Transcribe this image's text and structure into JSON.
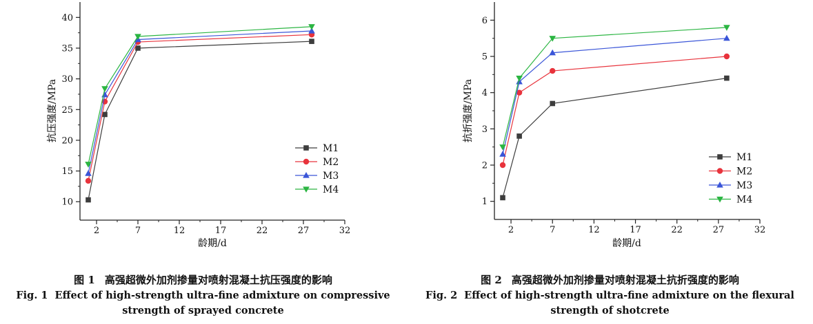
{
  "chart_data": [
    {
      "type": "line",
      "xlabel": "龄期/d",
      "ylabel": "抗压强度/MPa",
      "xlim": [
        0,
        32
      ],
      "ylim": [
        7,
        42.5
      ],
      "xticks": [
        2,
        7,
        12,
        17,
        22,
        27,
        32
      ],
      "yticks": [
        10,
        15,
        20,
        25,
        30,
        35,
        40
      ],
      "x": [
        1,
        3,
        7,
        28
      ],
      "legend_position": "middle-right",
      "series": [
        {
          "name": "M1",
          "values": [
            10.3,
            24.2,
            35.0,
            36.1
          ],
          "color": "#3d3d3d",
          "marker": "square"
        },
        {
          "name": "M2",
          "values": [
            13.4,
            26.3,
            36.0,
            37.2
          ],
          "color": "#e8333c",
          "marker": "circle"
        },
        {
          "name": "M3",
          "values": [
            14.6,
            27.4,
            36.4,
            37.8
          ],
          "color": "#3a55d8",
          "marker": "triangle-up"
        },
        {
          "name": "M4",
          "values": [
            16.1,
            28.4,
            36.9,
            38.5
          ],
          "color": "#2bb542",
          "marker": "triangle-down"
        }
      ],
      "caption_cn": {
        "label": "图 1",
        "text": "高强超微外加剂掺量对喷射混凝土抗压强度的影响"
      },
      "caption_en": {
        "label": "Fig. 1",
        "text": "Effect of high-strength ultra-fine admixture on compressive strength of sprayed concrete"
      }
    },
    {
      "type": "line",
      "xlabel": "龄期/d",
      "ylabel": "抗折强度/MPa",
      "xlim": [
        0,
        32
      ],
      "ylim": [
        0.5,
        6.5
      ],
      "xticks": [
        2,
        7,
        12,
        17,
        22,
        27,
        32
      ],
      "yticks": [
        1,
        2,
        3,
        4,
        5,
        6
      ],
      "x": [
        1,
        3,
        7,
        28
      ],
      "legend_position": "bottom-right",
      "series": [
        {
          "name": "M1",
          "values": [
            1.1,
            2.8,
            3.7,
            4.4
          ],
          "color": "#3d3d3d",
          "marker": "square"
        },
        {
          "name": "M2",
          "values": [
            2.0,
            4.0,
            4.6,
            5.0
          ],
          "color": "#e8333c",
          "marker": "circle"
        },
        {
          "name": "M3",
          "values": [
            2.3,
            4.3,
            5.1,
            5.5
          ],
          "color": "#3a55d8",
          "marker": "triangle-up"
        },
        {
          "name": "M4",
          "values": [
            2.5,
            4.4,
            5.5,
            5.8
          ],
          "color": "#2bb542",
          "marker": "triangle-down"
        }
      ],
      "caption_cn": {
        "label": "图 2",
        "text": "高强超微外加剂掺量对喷射混凝土抗折强度的影响"
      },
      "caption_en": {
        "label": "Fig. 2",
        "text": "Effect of high-strength ultra-fine admixture on the flexural strength of shotcrete"
      }
    }
  ]
}
